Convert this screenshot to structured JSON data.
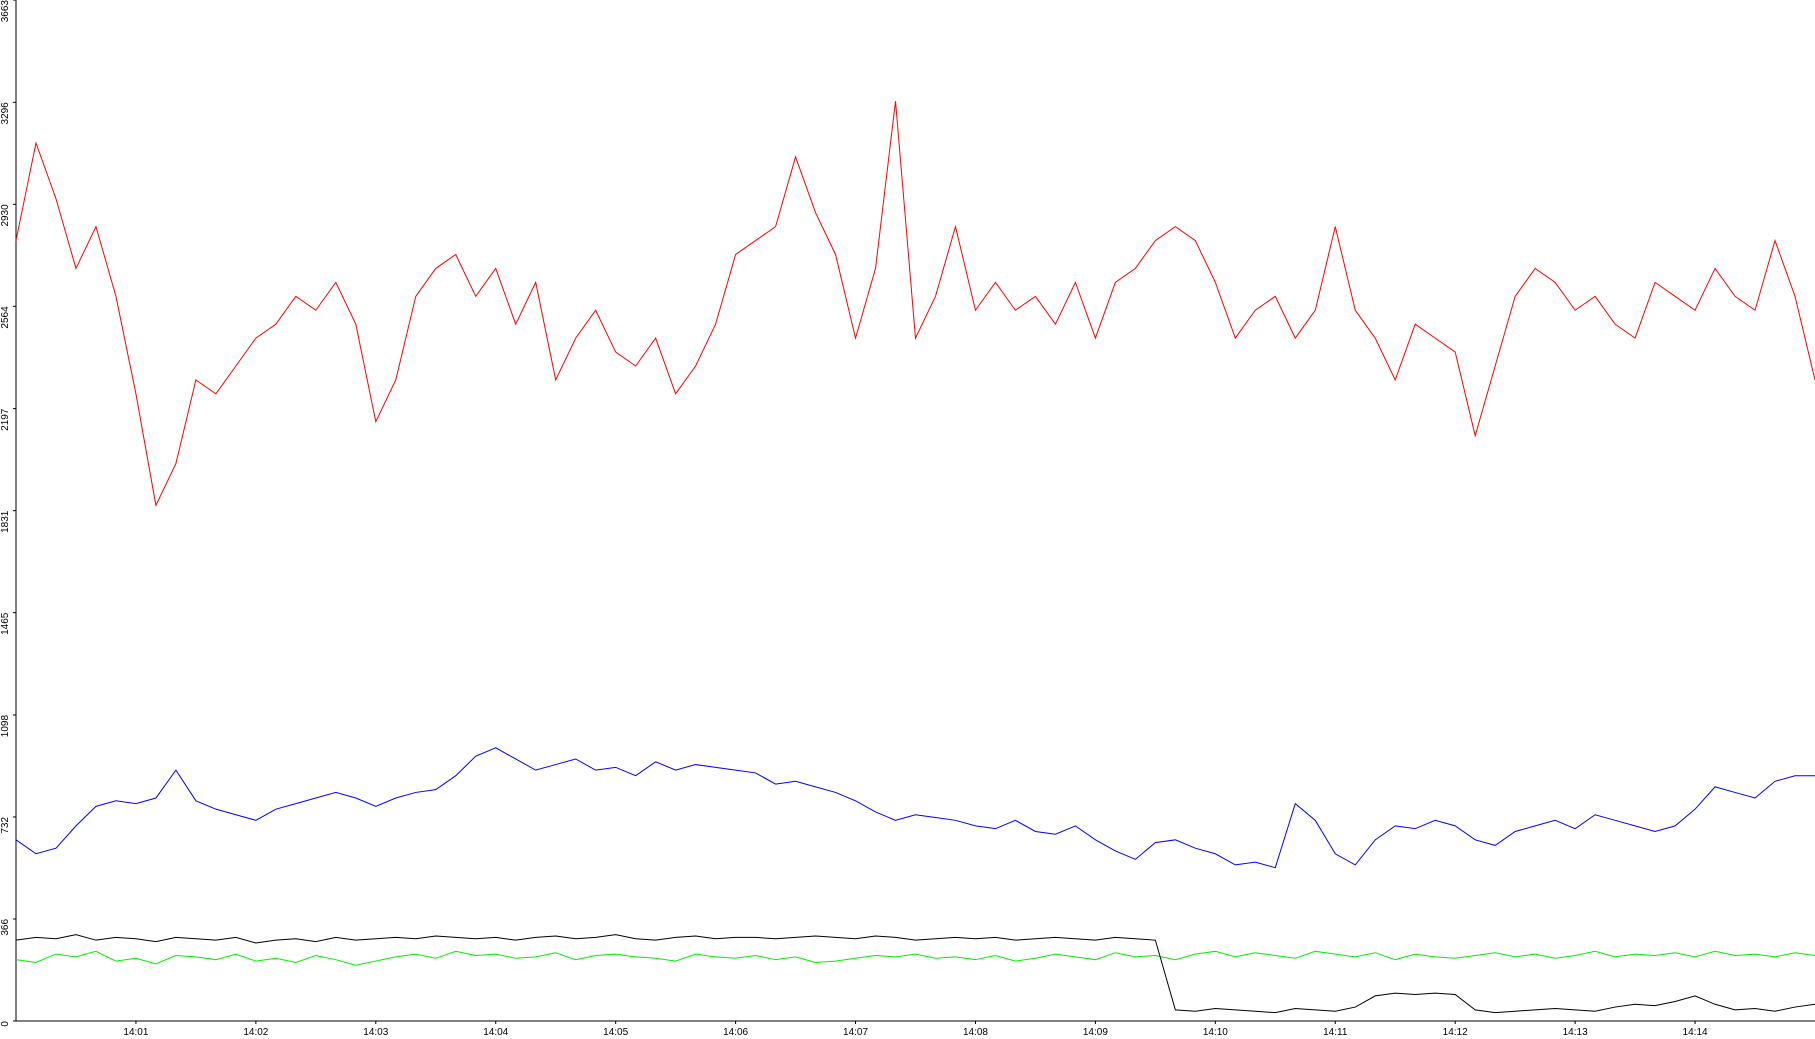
{
  "chart_data": {
    "type": "line",
    "categories": [
      null,
      null,
      null,
      null,
      null,
      null,
      "14:01",
      null,
      null,
      null,
      null,
      null,
      "14:02",
      null,
      null,
      null,
      null,
      null,
      "14:03",
      null,
      null,
      null,
      null,
      null,
      "14:04",
      null,
      null,
      null,
      null,
      null,
      "14:05",
      null,
      null,
      null,
      null,
      null,
      "14:06",
      null,
      null,
      null,
      null,
      null,
      "14:07",
      null,
      null,
      null,
      null,
      null,
      "14:08",
      null,
      null,
      null,
      null,
      null,
      "14:09",
      null,
      null,
      null,
      null,
      null,
      "14:10",
      null,
      null,
      null,
      null,
      null,
      "14:11",
      null,
      null,
      null,
      null,
      null,
      "14:12",
      null,
      null,
      null,
      null,
      null,
      "14:13",
      null,
      null,
      null,
      null,
      null,
      "14:14",
      null,
      null,
      null,
      null,
      null,
      null
    ],
    "series": [
      {
        "color": "#ff0000",
        "values": [
          2800,
          3150,
          2950,
          2700,
          2850,
          2600,
          2250,
          1850,
          2000,
          2300,
          2250,
          2350,
          2450,
          2500,
          2600,
          2550,
          2650,
          2500,
          2150,
          2300,
          2600,
          2700,
          2750,
          2600,
          2700,
          2500,
          2650,
          2300,
          2450,
          2550,
          2400,
          2350,
          2450,
          2250,
          2350,
          2500,
          2750,
          2800,
          2850,
          3100,
          2900,
          2750,
          2450,
          2700,
          3300,
          2450,
          2600,
          2850,
          2550,
          2650,
          2550,
          2600,
          2500,
          2650,
          2450,
          2650,
          2700,
          2800,
          2850,
          2800,
          2650,
          2450,
          2550,
          2600,
          2450,
          2550,
          2850,
          2550,
          2450,
          2300,
          2500,
          2450,
          2400,
          2100,
          2350,
          2600,
          2700,
          2650,
          2550,
          2600,
          2500,
          2450,
          2650,
          2600,
          2550,
          2700,
          2600,
          2550,
          2800,
          2600,
          2300
        ]
      },
      {
        "color": "#0000ff",
        "values": [
          650,
          600,
          620,
          700,
          770,
          790,
          780,
          800,
          900,
          790,
          760,
          740,
          720,
          760,
          780,
          800,
          820,
          800,
          770,
          800,
          820,
          830,
          880,
          950,
          980,
          940,
          900,
          920,
          940,
          900,
          910,
          880,
          930,
          900,
          920,
          910,
          900,
          890,
          850,
          860,
          840,
          820,
          790,
          750,
          720,
          740,
          730,
          720,
          700,
          690,
          720,
          680,
          670,
          700,
          650,
          610,
          580,
          640,
          650,
          620,
          600,
          560,
          570,
          550,
          780,
          720,
          600,
          560,
          650,
          700,
          690,
          720,
          700,
          650,
          630,
          680,
          700,
          720,
          690,
          740,
          720,
          700,
          680,
          700,
          760,
          840,
          820,
          800,
          860,
          880,
          880
        ]
      },
      {
        "color": "#00ee00",
        "values": [
          220,
          210,
          240,
          230,
          250,
          215,
          225,
          205,
          235,
          230,
          220,
          240,
          215,
          225,
          210,
          235,
          220,
          200,
          215,
          230,
          240,
          225,
          250,
          235,
          240,
          225,
          230,
          245,
          220,
          235,
          240,
          230,
          225,
          215,
          240,
          230,
          225,
          235,
          220,
          230,
          210,
          215,
          225,
          235,
          230,
          240,
          225,
          230,
          220,
          235,
          215,
          225,
          240,
          230,
          220,
          245,
          230,
          235,
          220,
          240,
          250,
          230,
          245,
          235,
          225,
          250,
          240,
          230,
          245,
          220,
          240,
          230,
          225,
          235,
          245,
          230,
          240,
          225,
          235,
          250,
          230,
          240,
          235,
          245,
          230,
          250,
          235,
          240,
          230,
          245,
          235
        ]
      },
      {
        "color": "#000000",
        "values": [
          290,
          300,
          295,
          310,
          290,
          300,
          295,
          285,
          300,
          295,
          290,
          300,
          280,
          290,
          295,
          285,
          300,
          290,
          295,
          300,
          295,
          305,
          300,
          295,
          300,
          290,
          300,
          305,
          295,
          300,
          310,
          295,
          290,
          300,
          305,
          295,
          300,
          300,
          295,
          300,
          305,
          300,
          295,
          305,
          300,
          290,
          295,
          300,
          295,
          300,
          290,
          295,
          300,
          295,
          290,
          300,
          295,
          290,
          40,
          35,
          45,
          40,
          35,
          30,
          45,
          40,
          35,
          50,
          90,
          100,
          95,
          100,
          95,
          40,
          30,
          35,
          40,
          45,
          40,
          35,
          50,
          60,
          55,
          70,
          90,
          60,
          40,
          45,
          35,
          50,
          60
        ]
      }
    ],
    "ylim": [
      0,
      3663
    ],
    "yticks": [
      0,
      366,
      732,
      1098,
      1465,
      1831,
      2197,
      2564,
      2930,
      3296,
      3663
    ]
  }
}
